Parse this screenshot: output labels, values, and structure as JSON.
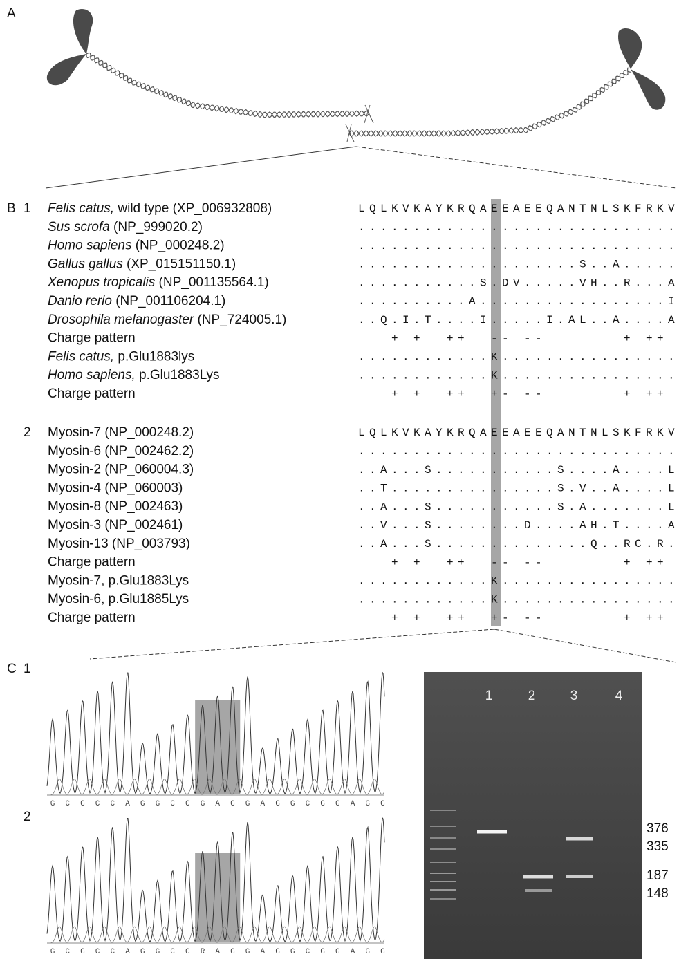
{
  "panels": {
    "a": "A",
    "b": "B",
    "c": "C"
  },
  "alignment1": {
    "label": "1",
    "rows": [
      {
        "italic": "Felis catus,",
        "name": " wild type (XP_006932808)",
        "sequence": "LQLKVKAYKRQAEEAEEQANTNLSKFRKV"
      },
      {
        "italic": "Sus scrofa",
        "name": " (NP_999020.2)",
        "sequence": "............................."
      },
      {
        "italic": "Homo sapiens",
        "name": " (NP_000248.2)",
        "sequence": "............................."
      },
      {
        "italic": "Gallus gallus",
        "name": " (XP_015151150.1)",
        "sequence": "....................S..A....."
      },
      {
        "italic": "Xenopus tropicalis",
        "name": " (NP_001135564.1)",
        "sequence": "...........S.DV.....VH..R...A"
      },
      {
        "italic": "Danio rerio",
        "name": " (NP_001106204.1)",
        "sequence": "..........A.................I"
      },
      {
        "italic": "Drosophila melanogaster",
        "name": " (NP_724005.1)",
        "sequence": "..Q.I.T....I.....I.AL..A....A"
      },
      {
        "name": "Charge pattern",
        "sequence": "   + +  ++  -- --       + ++ "
      },
      {
        "italic": "Felis catus,",
        "name": " p.Glu1883lys",
        "sequence": "............K................"
      },
      {
        "italic": "Homo sapiens,",
        "name": " p.Glu1883Lys",
        "sequence": "............K................"
      },
      {
        "name": "Charge pattern",
        "sequence": "   + +  ++  +- --       + ++ "
      }
    ]
  },
  "alignment2": {
    "label": "2",
    "rows": [
      {
        "name": "Myosin-7 (NP_000248.2)",
        "sequence": "LQLKVKAYKRQAEEAEEQANTNLSKFRKV"
      },
      {
        "name": "Myosin-6 (NP_002462.2)",
        "sequence": "............................."
      },
      {
        "name": "Myosin-2 (NP_060004.3)",
        "sequence": "..A...S...........S....A....L"
      },
      {
        "name": "Myosin-4 (NP_060003)",
        "sequence": "..T...............S.V..A....L"
      },
      {
        "name": "Myosin-8 (NP_002463)",
        "sequence": "..A...S...........S.A.......L"
      },
      {
        "name": "Myosin-3 (NP_002461)",
        "sequence": "..V...S........D....AH.T....A"
      },
      {
        "name": "Myosin-13 (NP_003793)",
        "sequence": "..A...S..............Q..RC.R."
      },
      {
        "name": "Charge pattern",
        "sequence": "   + +  ++  -- --       + ++ "
      },
      {
        "name": "Myosin-7, p.Glu1883Lys",
        "sequence": "............K................"
      },
      {
        "name": "Myosin-6, p.Glu1885Lys",
        "sequence": "............K................"
      },
      {
        "name": "Charge pattern",
        "sequence": "   + +  ++  +- --       + ++ "
      }
    ]
  },
  "chromatogram1": {
    "label": "1",
    "bases": [
      "G",
      "C",
      "G",
      "C",
      "C",
      "A",
      "G",
      "G",
      "C",
      "C",
      "G",
      "A",
      "G",
      "G",
      "A",
      "G",
      "G",
      "C",
      "G",
      "G",
      "A",
      "G",
      "G"
    ]
  },
  "chromatogram2": {
    "label": "2",
    "bases": [
      "G",
      "C",
      "G",
      "C",
      "C",
      "A",
      "G",
      "G",
      "C",
      "C",
      "R",
      "A",
      "G",
      "G",
      "A",
      "G",
      "G",
      "C",
      "G",
      "G",
      "A",
      "G",
      "G"
    ]
  },
  "gel": {
    "lanes": [
      "1",
      "2",
      "3",
      "4"
    ],
    "sizes": [
      "376",
      "335",
      "187",
      "148"
    ]
  }
}
